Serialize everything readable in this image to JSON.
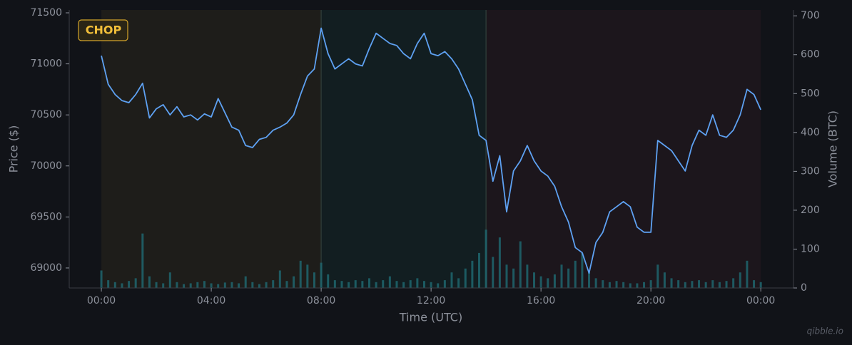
{
  "chart_data": {
    "type": "line",
    "badge": "CHOP",
    "watermark": "qibble.io",
    "xlabel": "Time (UTC)",
    "ylabel": "Price ($)",
    "y2label": "Volume (BTC)",
    "xlim": [
      -1.17,
      25.19
    ],
    "xticks": [
      {
        "value": 0,
        "label": "00:00"
      },
      {
        "value": 4,
        "label": "04:00"
      },
      {
        "value": 8,
        "label": "08:00"
      },
      {
        "value": 12,
        "label": "12:00"
      },
      {
        "value": 16,
        "label": "16:00"
      },
      {
        "value": 20,
        "label": "20:00"
      },
      {
        "value": 24,
        "label": "00:00"
      }
    ],
    "ylim": [
      68804,
      71528
    ],
    "yticks": [
      69000,
      69500,
      70000,
      70500,
      71000,
      71500
    ],
    "y2lim": [
      0,
      715
    ],
    "y2ticks": [
      0,
      100,
      200,
      300,
      400,
      500,
      600,
      700
    ],
    "regions": [
      {
        "start": 0,
        "end": 8,
        "color": "#1e1d1a"
      },
      {
        "start": 8,
        "end": 14,
        "color": "#121e21"
      },
      {
        "start": 14,
        "end": 24,
        "color": "#1c161c"
      }
    ],
    "x": [
      0,
      0.25,
      0.5,
      0.75,
      1,
      1.25,
      1.5,
      1.75,
      2,
      2.25,
      2.5,
      2.75,
      3,
      3.25,
      3.5,
      3.75,
      4,
      4.25,
      4.5,
      4.75,
      5,
      5.25,
      5.5,
      5.75,
      6,
      6.25,
      6.5,
      6.75,
      7,
      7.25,
      7.5,
      7.75,
      8,
      8.25,
      8.5,
      8.75,
      9,
      9.25,
      9.5,
      9.75,
      10,
      10.25,
      10.5,
      10.75,
      11,
      11.25,
      11.5,
      11.75,
      12,
      12.25,
      12.5,
      12.75,
      13,
      13.25,
      13.5,
      13.75,
      14,
      14.25,
      14.5,
      14.75,
      15,
      15.25,
      15.5,
      15.75,
      16,
      16.25,
      16.5,
      16.75,
      17,
      17.25,
      17.5,
      17.75,
      18,
      18.25,
      18.5,
      18.75,
      19,
      19.25,
      19.5,
      19.75,
      20,
      20.25,
      20.5,
      20.75,
      21,
      21.25,
      21.5,
      21.75,
      22,
      22.25,
      22.5,
      22.75,
      23,
      23.25,
      23.5,
      23.75,
      24
    ],
    "series": [
      {
        "name": "Price",
        "color": "#5ea1f2",
        "values": [
          71080,
          70800,
          70700,
          70640,
          70620,
          70700,
          70810,
          70470,
          70560,
          70600,
          70500,
          70580,
          70480,
          70500,
          70450,
          70510,
          70480,
          70660,
          70520,
          70380,
          70350,
          70200,
          70180,
          70260,
          70280,
          70350,
          70380,
          70420,
          70500,
          70700,
          70880,
          70950,
          71350,
          71100,
          70950,
          71000,
          71050,
          71000,
          70980,
          71150,
          71300,
          71250,
          71200,
          71180,
          71100,
          71050,
          71200,
          71300,
          71100,
          71080,
          71120,
          71050,
          70950,
          70800,
          70650,
          70300,
          70250,
          69850,
          70100,
          69550,
          69950,
          70050,
          70200,
          70050,
          69950,
          69900,
          69800,
          69600,
          69450,
          69200,
          69150,
          68950,
          69250,
          69350,
          69550,
          69600,
          69650,
          69600,
          69400,
          69350,
          69350,
          70250,
          70200,
          70150,
          70050,
          69950,
          70200,
          70350,
          70300,
          70500,
          70300,
          70280,
          70350,
          70500,
          70750,
          70700,
          70550
        ]
      },
      {
        "name": "Volume",
        "color": "#1f6a73",
        "axis": "y2",
        "values": [
          45,
          20,
          15,
          12,
          18,
          25,
          140,
          30,
          15,
          12,
          40,
          15,
          10,
          12,
          15,
          18,
          12,
          10,
          14,
          15,
          12,
          30,
          15,
          10,
          15,
          20,
          45,
          18,
          30,
          70,
          60,
          40,
          65,
          35,
          20,
          18,
          15,
          20,
          18,
          25,
          15,
          20,
          30,
          18,
          15,
          20,
          25,
          18,
          15,
          12,
          20,
          40,
          25,
          50,
          70,
          90,
          150,
          80,
          130,
          60,
          50,
          120,
          60,
          40,
          30,
          25,
          35,
          60,
          50,
          70,
          90,
          40,
          25,
          20,
          15,
          18,
          15,
          12,
          12,
          15,
          20,
          60,
          40,
          25,
          20,
          15,
          18,
          20,
          15,
          20,
          15,
          18,
          25,
          40,
          70,
          20,
          15
        ]
      }
    ]
  }
}
